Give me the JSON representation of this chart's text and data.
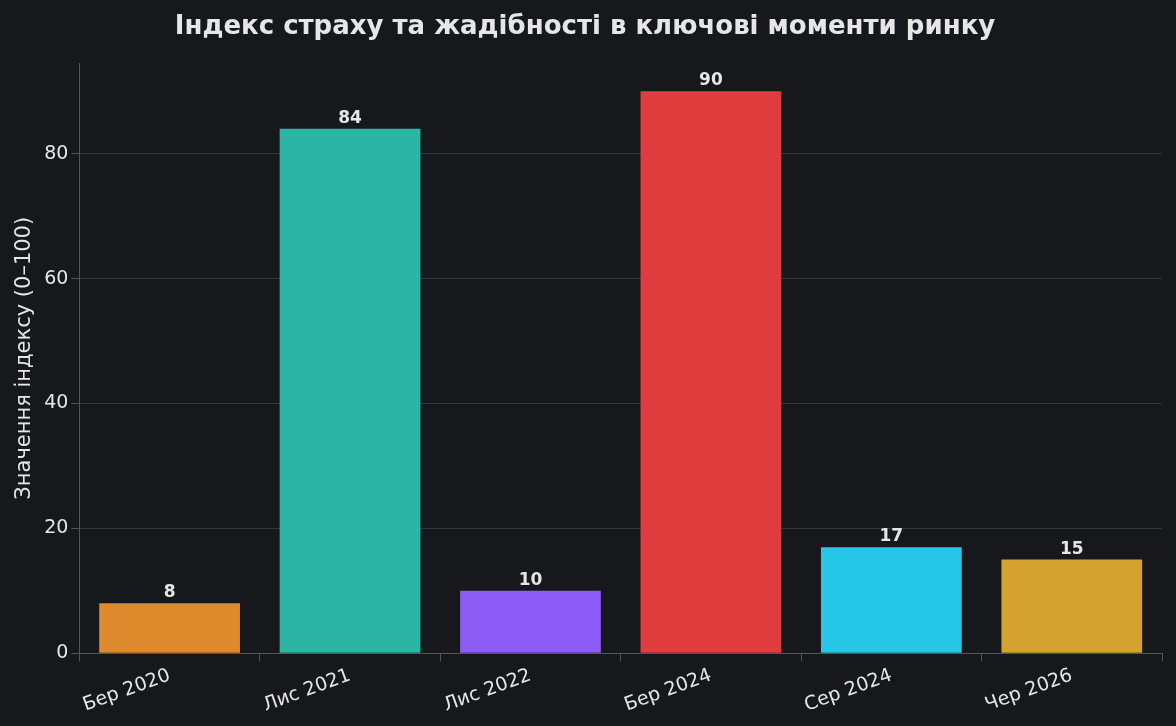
{
  "chart_data": {
    "type": "bar",
    "title": "Індекс страху та жадібності в ключові моменти ринку",
    "ylabel": "Значення індексу (0–100)",
    "categories": [
      "Бер 2020",
      "Лис 2021",
      "Лис 2022",
      "Бер 2024",
      "Сер 2024",
      "Чер 2026"
    ],
    "values": [
      8,
      84,
      10,
      90,
      17,
      15
    ],
    "colors": [
      "#e08a2e",
      "#2bb5a5",
      "#8b5cf6",
      "#e03e3e",
      "#26c6e6",
      "#d4a22f"
    ],
    "ylim": [
      0,
      94.5
    ],
    "yticks": [
      0,
      20,
      40,
      60,
      80
    ],
    "grid": "y",
    "data_labels": true
  }
}
